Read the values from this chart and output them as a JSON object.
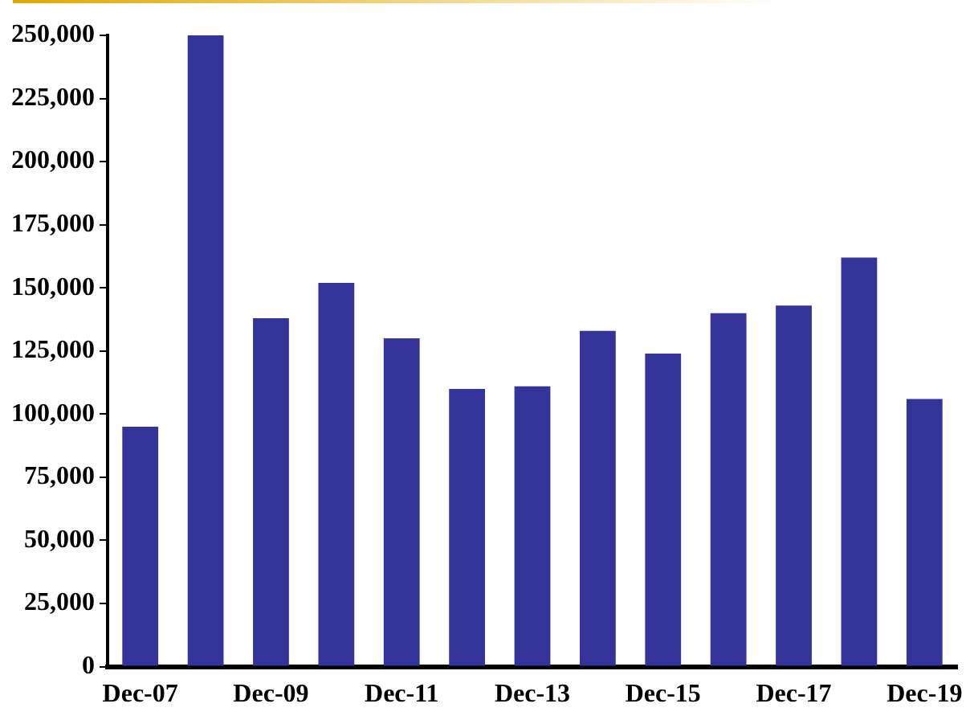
{
  "chart_data": {
    "type": "bar",
    "categories": [
      "Dec-07",
      null,
      "Dec-09",
      null,
      "Dec-11",
      null,
      "Dec-13",
      null,
      "Dec-15",
      null,
      "Dec-17",
      null,
      "Dec-19"
    ],
    "values": [
      95000,
      250000,
      138000,
      152000,
      130000,
      110000,
      111000,
      133000,
      124000,
      140000,
      143000,
      162000,
      106000
    ],
    "color": "#333399",
    "ylim": [
      0,
      250000
    ],
    "yticks": [
      0,
      {
        "value": 25000,
        "label": "25,000"
      },
      {
        "value": 50000,
        "label": "50,000"
      },
      {
        "value": 75000,
        "label": "75,000"
      },
      {
        "value": 100000,
        "label": "100,000"
      },
      {
        "value": 125000,
        "label": "125,000"
      },
      {
        "value": 150000,
        "label": "150,000"
      },
      {
        "value": 175000,
        "label": "175,000"
      },
      {
        "value": 200000,
        "label": "200,000"
      },
      {
        "value": 225000,
        "label": "225,000"
      },
      {
        "value": 250000,
        "label": "250,000"
      }
    ],
    "grid": false,
    "legend": false
  }
}
